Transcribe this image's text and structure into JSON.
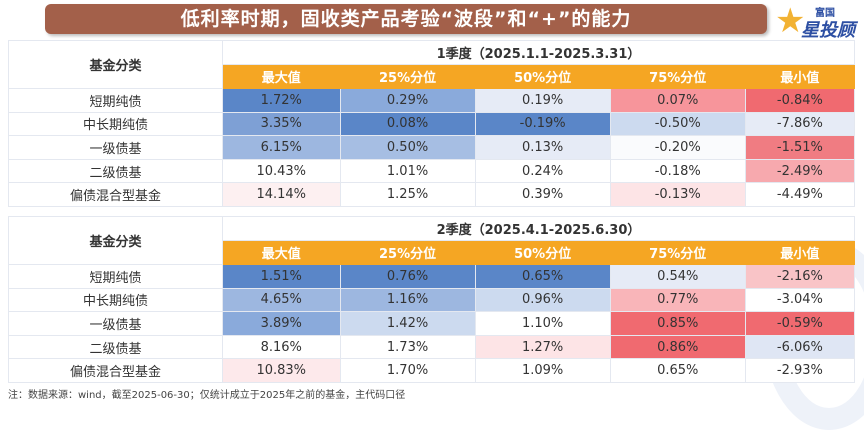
{
  "title": "低利率时期，固收类产品考验“波段”和“+”的能力",
  "logo": {
    "small": "富国",
    "big": "星投顾"
  },
  "category_header": "基金分类",
  "columns": [
    "最大值",
    "25%分位",
    "50%分位",
    "75%分位",
    "最小值"
  ],
  "colors": {
    "header_orange": "#f5a623",
    "title_brown": "#a3604a",
    "positive_blue": "#5a86c8",
    "negative_red": "#f06a70"
  },
  "tables": [
    {
      "period": "1季度（2025.1.1-2025.3.31）",
      "rows": [
        {
          "label": "短期纯债",
          "values": [
            "1.72%",
            "0.29%",
            "0.19%",
            "0.07%",
            "-0.84%"
          ],
          "colors": [
            "#5a86c8",
            "#8aaadb",
            "#e6ebf6",
            "#f7959b",
            "#f06a70"
          ]
        },
        {
          "label": "中长期纯债",
          "values": [
            "3.35%",
            "0.08%",
            "-0.19%",
            "-0.50%",
            "-7.86%"
          ],
          "colors": [
            "#7ea0d5",
            "#5a86c8",
            "#5a86c8",
            "#ccdaef",
            "#e6ebf6"
          ]
        },
        {
          "label": "一级债基",
          "values": [
            "6.15%",
            "0.50%",
            "0.13%",
            "-0.20%",
            "-1.51%"
          ],
          "colors": [
            "#9db7e0",
            "#a6bee3",
            "#e6ebf6",
            "#fafbfd",
            "#f07c82"
          ]
        },
        {
          "label": "二级债基",
          "values": [
            "10.43%",
            "1.01%",
            "0.24%",
            "-0.18%",
            "-2.49%"
          ],
          "colors": [
            "#ffffff",
            "#ffffff",
            "#ffffff",
            "#ffffff",
            "#f7a9ae"
          ]
        },
        {
          "label": "偏债混合型基金",
          "values": [
            "14.14%",
            "1.25%",
            "0.39%",
            "-0.13%",
            "-4.49%"
          ],
          "colors": [
            "#fdf0f1",
            "#ffffff",
            "#ffffff",
            "#fde4e6",
            "#ffffff"
          ]
        }
      ]
    },
    {
      "period": "2季度（2025.4.1-2025.6.30）",
      "rows": [
        {
          "label": "短期纯债",
          "values": [
            "1.51%",
            "0.76%",
            "0.65%",
            "0.54%",
            "-2.16%"
          ],
          "colors": [
            "#5a86c8",
            "#5a86c8",
            "#5a86c8",
            "#e6ebf6",
            "#f9c4c7"
          ]
        },
        {
          "label": "中长期纯债",
          "values": [
            "4.65%",
            "1.16%",
            "0.96%",
            "0.77%",
            "-3.04%"
          ],
          "colors": [
            "#9db7e0",
            "#9db7e0",
            "#ccdaef",
            "#f9b5b9",
            "#ffffff"
          ]
        },
        {
          "label": "一级债基",
          "values": [
            "3.89%",
            "1.42%",
            "1.10%",
            "0.85%",
            "-0.59%"
          ],
          "colors": [
            "#8aaadb",
            "#ccdaef",
            "#ffffff",
            "#f06a70",
            "#f06a70"
          ]
        },
        {
          "label": "二级债基",
          "values": [
            "8.16%",
            "1.73%",
            "1.27%",
            "0.86%",
            "-6.06%"
          ],
          "colors": [
            "#ffffff",
            "#ffffff",
            "#fde4e6",
            "#f06a70",
            "#dfe6f4"
          ]
        },
        {
          "label": "偏债混合型基金",
          "values": [
            "10.83%",
            "1.70%",
            "1.09%",
            "0.65%",
            "-2.93%"
          ],
          "colors": [
            "#fde9eb",
            "#ffffff",
            "#ffffff",
            "#ffffff",
            "#ffffff"
          ]
        }
      ]
    }
  ],
  "footnote": "注：数据来源：wind，截至2025-06-30；仅统计成立于2025年之前的基金，主代码口径"
}
